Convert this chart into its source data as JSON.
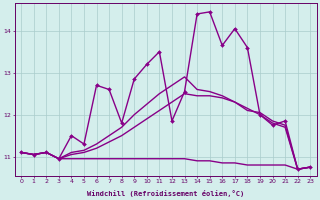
{
  "xlabel": "Windchill (Refroidissement éolien,°C)",
  "bg_color": "#d4eeec",
  "line_color": "#880088",
  "grid_color": "#aacccc",
  "axis_color": "#660066",
  "xlim": [
    -0.5,
    23.5
  ],
  "ylim": [
    10.55,
    14.65
  ],
  "yticks": [
    11,
    12,
    13,
    14
  ],
  "xticks": [
    0,
    1,
    2,
    3,
    4,
    5,
    6,
    7,
    8,
    9,
    10,
    11,
    12,
    13,
    14,
    15,
    16,
    17,
    18,
    19,
    20,
    21,
    22,
    23
  ],
  "lines": [
    {
      "x": [
        0,
        1,
        2,
        3,
        4,
        5,
        6,
        7,
        8,
        9,
        10,
        11,
        12,
        13,
        14,
        15,
        16,
        17,
        18,
        19,
        20,
        21,
        22,
        23
      ],
      "y": [
        11.1,
        11.05,
        11.1,
        10.95,
        11.5,
        11.3,
        12.7,
        12.6,
        11.8,
        12.85,
        13.2,
        13.5,
        11.85,
        12.55,
        14.4,
        14.45,
        13.65,
        14.05,
        13.6,
        12.0,
        11.75,
        11.85,
        10.7,
        10.75
      ],
      "marker": true,
      "lw": 1.0
    },
    {
      "x": [
        0,
        1,
        2,
        3,
        4,
        5,
        6,
        7,
        8,
        9,
        10,
        11,
        12,
        13,
        14,
        15,
        16,
        17,
        18,
        19,
        20,
        21,
        22,
        23
      ],
      "y": [
        11.1,
        11.05,
        11.1,
        10.95,
        11.1,
        11.15,
        11.3,
        11.5,
        11.7,
        12.0,
        12.25,
        12.5,
        12.7,
        12.9,
        12.6,
        12.55,
        12.45,
        12.3,
        12.1,
        12.05,
        11.85,
        11.75,
        10.7,
        10.75
      ],
      "marker": false,
      "lw": 1.0
    },
    {
      "x": [
        0,
        1,
        2,
        3,
        4,
        5,
        6,
        7,
        8,
        9,
        10,
        11,
        12,
        13,
        14,
        15,
        16,
        17,
        18,
        19,
        20,
        21,
        22,
        23
      ],
      "y": [
        11.1,
        11.05,
        11.1,
        10.95,
        11.05,
        11.1,
        11.2,
        11.35,
        11.5,
        11.7,
        11.9,
        12.1,
        12.3,
        12.5,
        12.45,
        12.45,
        12.4,
        12.3,
        12.15,
        12.0,
        11.8,
        11.7,
        10.7,
        10.75
      ],
      "marker": false,
      "lw": 1.0
    },
    {
      "x": [
        0,
        1,
        2,
        3,
        4,
        5,
        6,
        7,
        8,
        9,
        10,
        11,
        12,
        13,
        14,
        15,
        16,
        17,
        18,
        19,
        20,
        21,
        22,
        23
      ],
      "y": [
        11.1,
        11.05,
        11.1,
        10.95,
        10.95,
        10.95,
        10.95,
        10.95,
        10.95,
        10.95,
        10.95,
        10.95,
        10.95,
        10.95,
        10.9,
        10.9,
        10.85,
        10.85,
        10.8,
        10.8,
        10.8,
        10.8,
        10.7,
        10.75
      ],
      "marker": false,
      "lw": 1.0
    }
  ]
}
